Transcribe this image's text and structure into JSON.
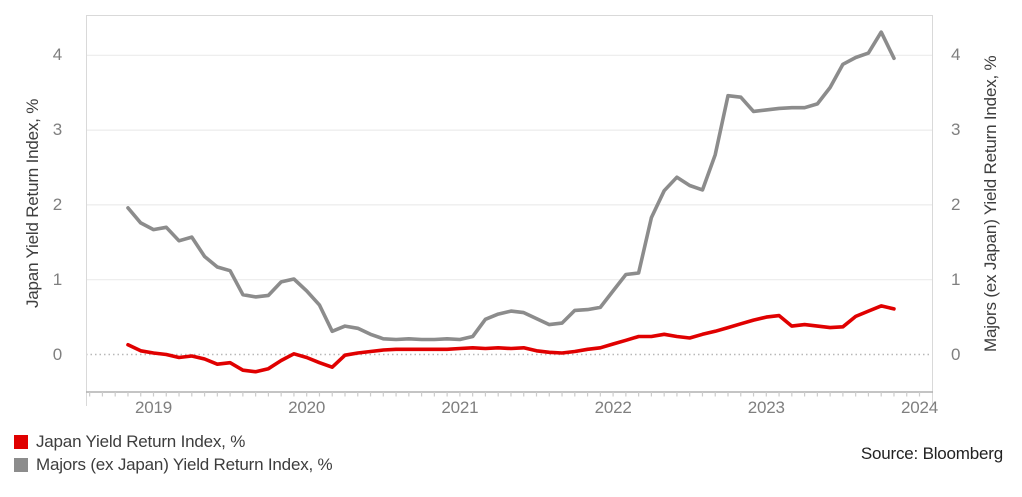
{
  "chart_data": {
    "type": "line",
    "grid": "horizontal, light solid lines at integers; dotted line at zero",
    "legend_position": "bottom-left",
    "x": [
      "2018-11",
      "2018-12",
      "2019-01",
      "2019-02",
      "2019-03",
      "2019-04",
      "2019-05",
      "2019-06",
      "2019-07",
      "2019-08",
      "2019-09",
      "2019-10",
      "2019-11",
      "2019-12",
      "2020-01",
      "2020-02",
      "2020-03",
      "2020-04",
      "2020-05",
      "2020-06",
      "2020-07",
      "2020-08",
      "2020-09",
      "2020-10",
      "2020-11",
      "2020-12",
      "2021-01",
      "2021-02",
      "2021-03",
      "2021-04",
      "2021-05",
      "2021-06",
      "2021-07",
      "2021-08",
      "2021-09",
      "2021-10",
      "2021-11",
      "2021-12",
      "2022-01",
      "2022-02",
      "2022-03",
      "2022-04",
      "2022-05",
      "2022-06",
      "2022-07",
      "2022-08",
      "2022-09",
      "2022-10",
      "2022-11",
      "2022-12",
      "2023-01",
      "2023-02",
      "2023-03",
      "2023-04",
      "2023-05",
      "2023-06",
      "2023-07",
      "2023-08",
      "2023-09",
      "2023-10",
      "2023-11"
    ],
    "x_tick_labels": [
      "2019",
      "2020",
      "2021",
      "2022",
      "2023",
      "2024"
    ],
    "left_axis": {
      "label": "Japan Yield Return Index, %",
      "ticks": [
        0,
        1,
        2,
        3,
        4
      ],
      "range": [
        -0.5,
        4.55
      ]
    },
    "right_axis": {
      "label": "Majors (ex Japan) Yield Return Index, %",
      "ticks": [
        0,
        1,
        2,
        3,
        4
      ],
      "range": [
        -0.5,
        4.55
      ]
    },
    "series": [
      {
        "name": "Majors (ex Japan) Yield Return Index, %",
        "color": "#8c8c8c",
        "values": [
          1.96,
          1.76,
          1.67,
          1.7,
          1.52,
          1.57,
          1.31,
          1.17,
          1.12,
          0.8,
          0.77,
          0.79,
          0.97,
          1.01,
          0.85,
          0.66,
          0.31,
          0.38,
          0.35,
          0.27,
          0.21,
          0.2,
          0.21,
          0.2,
          0.2,
          0.21,
          0.2,
          0.24,
          0.47,
          0.54,
          0.58,
          0.56,
          0.48,
          0.4,
          0.42,
          0.59,
          0.6,
          0.63,
          0.85,
          1.07,
          1.09,
          1.83,
          2.19,
          2.37,
          2.26,
          2.2,
          2.67,
          3.46,
          3.44,
          3.25,
          3.27,
          3.29,
          3.3,
          3.3,
          3.35,
          3.57,
          3.88,
          3.97,
          4.03,
          4.31,
          3.96
        ]
      },
      {
        "name": "Japan Yield Return Index, %",
        "color": "#e00000",
        "values": [
          0.13,
          0.05,
          0.02,
          0.0,
          -0.04,
          -0.02,
          -0.06,
          -0.13,
          -0.11,
          -0.21,
          -0.23,
          -0.19,
          -0.08,
          0.01,
          -0.04,
          -0.11,
          -0.17,
          -0.01,
          0.02,
          0.04,
          0.06,
          0.07,
          0.07,
          0.07,
          0.07,
          0.07,
          0.08,
          0.09,
          0.08,
          0.09,
          0.08,
          0.09,
          0.05,
          0.03,
          0.02,
          0.04,
          0.07,
          0.09,
          0.14,
          0.19,
          0.24,
          0.24,
          0.27,
          0.24,
          0.22,
          0.27,
          0.31,
          0.36,
          0.41,
          0.46,
          0.5,
          0.52,
          0.38,
          0.4,
          0.38,
          0.36,
          0.37,
          0.51,
          0.58,
          0.65,
          0.61
        ]
      }
    ]
  },
  "legend": {
    "items": [
      {
        "label": "Japan Yield Return Index, %",
        "color": "#e00000"
      },
      {
        "label": "Majors (ex Japan) Yield Return Index, %",
        "color": "#8c8c8c"
      }
    ]
  },
  "source": {
    "text": "Source: Bloomberg"
  }
}
